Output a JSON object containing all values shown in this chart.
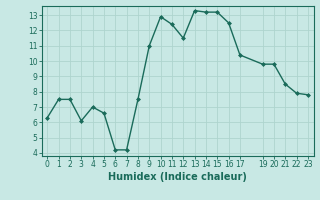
{
  "xlabel": "Humidex (Indice chaleur)",
  "x_values": [
    0,
    1,
    2,
    3,
    4,
    5,
    6,
    7,
    8,
    9,
    10,
    11,
    12,
    13,
    14,
    15,
    16,
    17,
    19,
    20,
    21,
    22,
    23
  ],
  "y_values": [
    6.3,
    7.5,
    7.5,
    6.1,
    7.0,
    6.6,
    4.2,
    4.2,
    7.5,
    11.0,
    12.9,
    12.4,
    11.5,
    13.3,
    13.2,
    13.2,
    12.5,
    10.4,
    9.8,
    9.8,
    8.5,
    7.9,
    7.8
  ],
  "line_color": "#1a6b5a",
  "marker": "D",
  "markersize": 2.0,
  "linewidth": 1.0,
  "bg_color": "#c8e8e4",
  "grid_color": "#aed4ce",
  "ylim": [
    3.8,
    13.6
  ],
  "xlim": [
    -0.5,
    23.5
  ],
  "yticks": [
    4,
    5,
    6,
    7,
    8,
    9,
    10,
    11,
    12,
    13
  ],
  "xticks": [
    0,
    1,
    2,
    3,
    4,
    5,
    6,
    7,
    8,
    9,
    10,
    11,
    12,
    13,
    14,
    15,
    16,
    17,
    19,
    20,
    21,
    22,
    23
  ],
  "tick_label_fontsize": 5.5,
  "xlabel_fontsize": 7.0,
  "tick_color": "#1a6b5a",
  "label_color": "#1a6b5a",
  "spine_color": "#1a6b5a"
}
